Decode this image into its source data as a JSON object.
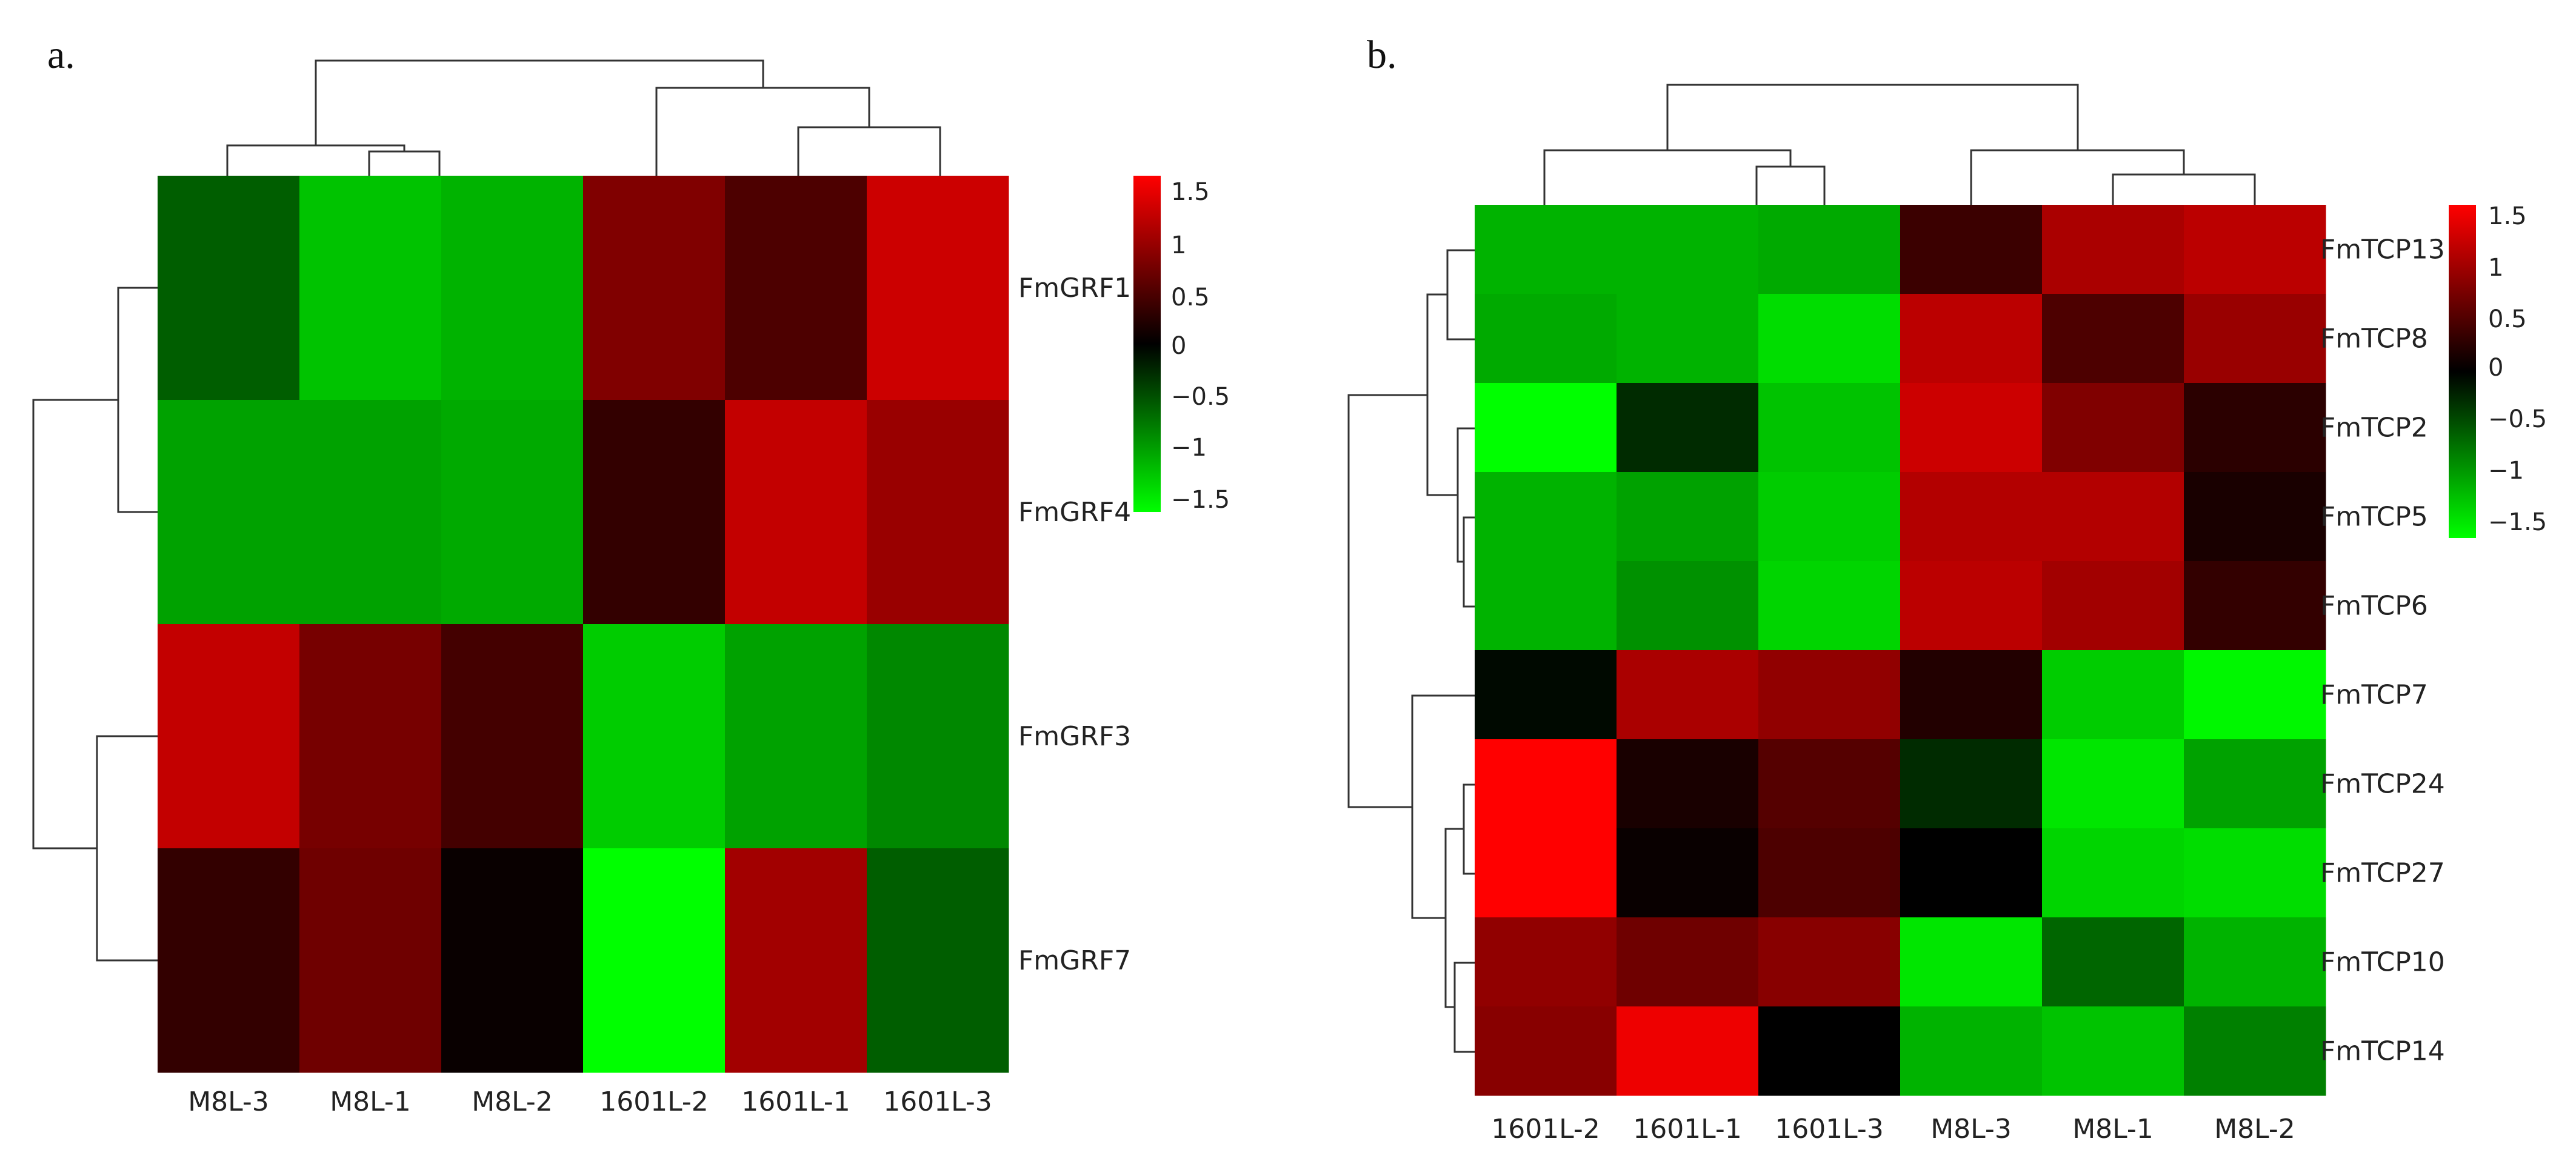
{
  "chart_data": [
    {
      "type": "heatmap",
      "panel_label": "a.",
      "columns": [
        "M8L-3",
        "M8L-1",
        "M8L-2",
        "1601L-2",
        "1601L-1",
        "1601L-3"
      ],
      "rows": [
        "FmGRF1",
        "FmGRF4",
        "FmGRF3",
        "FmGRF7"
      ],
      "values": [
        [
          -0.55,
          -1.15,
          -1.05,
          0.75,
          0.45,
          1.2
        ],
        [
          -0.95,
          -0.95,
          -1.0,
          0.3,
          1.15,
          0.9
        ],
        [
          1.15,
          0.7,
          0.4,
          -1.2,
          -0.95,
          -0.8
        ],
        [
          0.3,
          0.65,
          0.05,
          -1.5,
          0.95,
          -0.55
        ]
      ],
      "color_scale": {
        "min": -1.5,
        "max": 1.5,
        "low_color": "#00ff00",
        "mid_color": "#000000",
        "high_color": "#ff0000",
        "ticks": [
          "1.5",
          "1",
          "0.5",
          "0",
          "−0.5",
          "−1",
          "−1.5"
        ]
      },
      "row_dendrogram": "((FmGRF1,FmGRF4),(FmGRF3,FmGRF7))",
      "column_dendrogram": "((M8L-3,(M8L-1,M8L-2)),(1601L-2,(1601L-1,1601L-3)))"
    },
    {
      "type": "heatmap",
      "panel_label": "b.",
      "columns": [
        "1601L-2",
        "1601L-1",
        "1601L-3",
        "M8L-3",
        "M8L-1",
        "M8L-2"
      ],
      "rows": [
        "FmTCP13",
        "FmTCP8",
        "FmTCP2",
        "FmTCP5",
        "FmTCP6",
        "FmTCP7",
        "FmTCP24",
        "FmTCP27",
        "FmTCP10",
        "FmTCP14"
      ],
      "values": [
        [
          -1.05,
          -1.05,
          -1.0,
          0.35,
          1.0,
          1.1
        ],
        [
          -1.0,
          -1.05,
          -1.3,
          1.1,
          0.45,
          0.9
        ],
        [
          -1.5,
          -0.25,
          -1.15,
          1.2,
          0.75,
          0.25
        ],
        [
          -1.05,
          -0.95,
          -1.2,
          1.05,
          1.05,
          0.15
        ],
        [
          -1.05,
          -0.85,
          -1.25,
          1.1,
          0.95,
          0.3
        ],
        [
          -0.05,
          1.0,
          0.85,
          0.2,
          -1.2,
          -1.45
        ],
        [
          1.5,
          0.15,
          0.5,
          -0.25,
          -1.35,
          -0.95
        ],
        [
          1.5,
          0.05,
          0.45,
          0.0,
          -1.25,
          -1.3
        ],
        [
          0.85,
          0.65,
          0.8,
          -1.35,
          -0.6,
          -1.05
        ],
        [
          0.8,
          1.4,
          0.0,
          -1.05,
          -1.15,
          -0.75
        ]
      ],
      "color_scale": {
        "min": -1.5,
        "max": 1.5,
        "low_color": "#00ff00",
        "mid_color": "#000000",
        "high_color": "#ff0000",
        "ticks": [
          "1.5",
          "1",
          "0.5",
          "0",
          "−0.5",
          "−1",
          "−1.5"
        ]
      },
      "row_dendrogram": "(((FmTCP13,FmTCP8),(FmTCP2,(FmTCP5,FmTCP6))),(FmTCP7,((FmTCP24,FmTCP27),(FmTCP10,FmTCP14))))",
      "column_dendrogram": "((1601L-2,(1601L-1,1601L-3)),(M8L-3,(M8L-1,M8L-2)))"
    }
  ]
}
